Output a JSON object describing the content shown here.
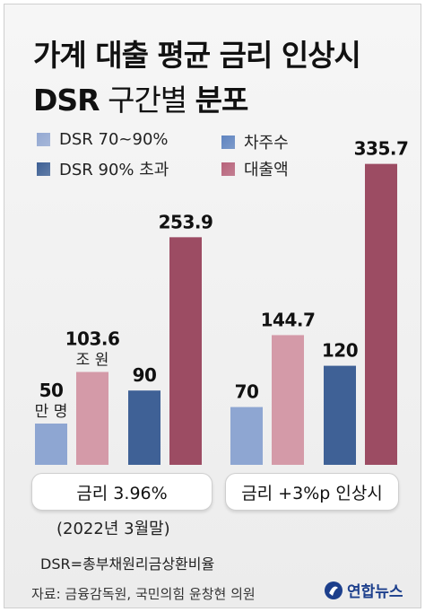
{
  "title_line1": "가계 대출 평균 금리 인상시",
  "title_line2_a": "DSR",
  "title_line2_b": "구간별",
  "title_line2_c": "분포",
  "legend": [
    {
      "label": "DSR 70~90%",
      "color": "#93a8d2"
    },
    {
      "label": "차주수",
      "color": "#5f84c0"
    },
    {
      "label": "DSR 90% 초과",
      "color": "#3d5f94"
    },
    {
      "label": "대출액",
      "color": "#b7627a"
    }
  ],
  "chart_data": {
    "type": "bar",
    "title": "가계 대출 평균 금리 인상시 DSR 구간별 분포",
    "groups": [
      "금리 3.96%",
      "금리 +3%p 인상시"
    ],
    "series": [
      {
        "name": "DSR 70~90% 차주수",
        "values": [
          50,
          70
        ],
        "color": "#8ea6d2"
      },
      {
        "name": "DSR 70~90% 대출액",
        "values": [
          103.6,
          144.7
        ],
        "color": "#d49aa8"
      },
      {
        "name": "DSR 90% 초과 차주수",
        "values": [
          90,
          120
        ],
        "color": "#3f6196"
      },
      {
        "name": "DSR 90% 초과 대출액",
        "values": [
          253.9,
          335.7
        ],
        "color": "#9c4c63"
      }
    ],
    "value_labels": [
      [
        "50",
        "103.6",
        "90",
        "253.9"
      ],
      [
        "70",
        "144.7",
        "120",
        "335.7"
      ]
    ],
    "units": {
      "borrowers": "만 명",
      "loans": "조 원"
    }
  },
  "date_note": "(2022년 3월말)",
  "dsr_definition": "DSR=총부채원리금상환비율",
  "source": "자료: 금융감독원, 국민의힘 윤창현 의원",
  "logo_text": "연합뉴스"
}
